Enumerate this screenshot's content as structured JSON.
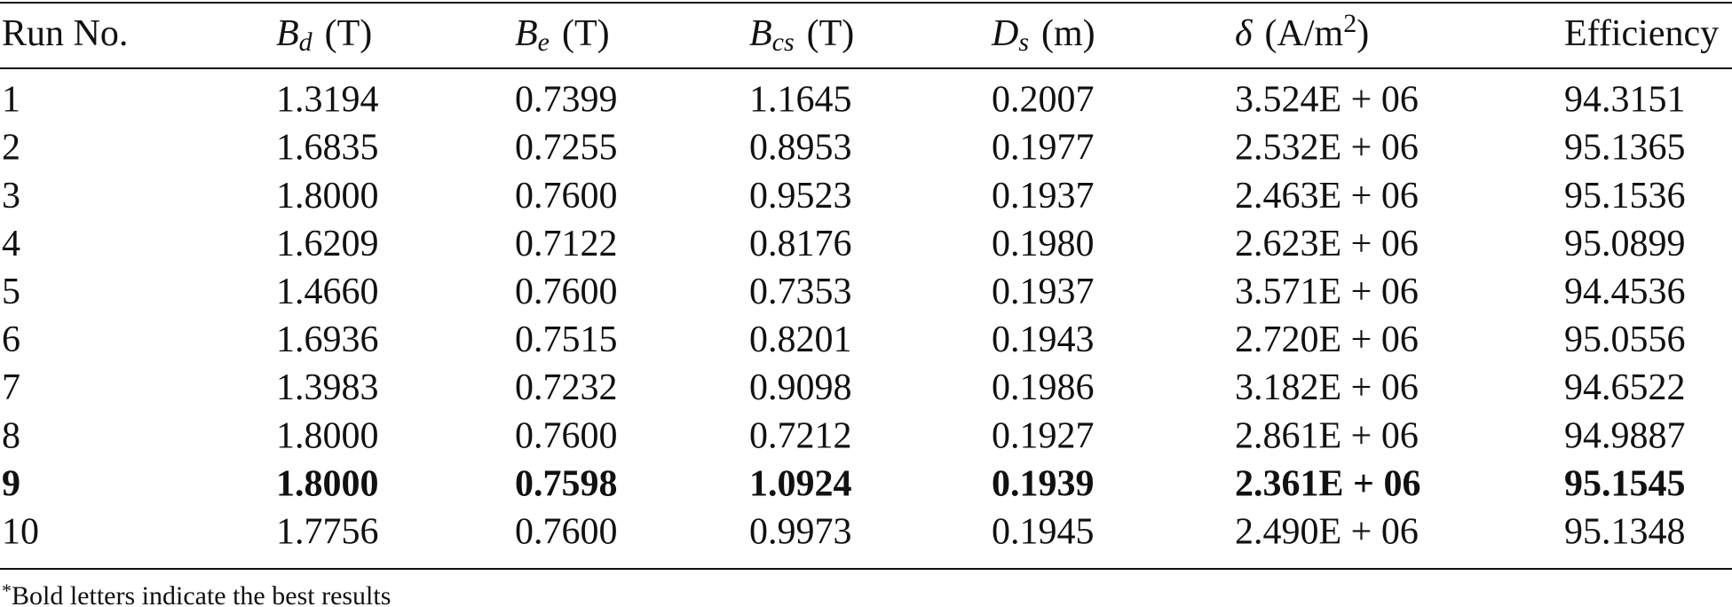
{
  "table": {
    "header": [
      {
        "text": "Run No."
      },
      {
        "symbol": "B",
        "subscript": "d",
        "unit": "(T)"
      },
      {
        "symbol": "B",
        "subscript": "e",
        "unit": "(T)"
      },
      {
        "symbol": "B",
        "subscript": "cs",
        "unit": "(T)"
      },
      {
        "symbol": "D",
        "subscript": "s",
        "unit": "(m)"
      },
      {
        "symbol": "δ",
        "unit": "(A/m",
        "superscript": "2",
        "close": ")"
      },
      {
        "text": "Efficiency"
      }
    ],
    "rows": [
      [
        "1",
        "1.3194",
        "0.7399",
        "1.1645",
        "0.2007",
        "3.524E + 06",
        "94.3151"
      ],
      [
        "2",
        "1.6835",
        "0.7255",
        "0.8953",
        "0.1977",
        "2.532E + 06",
        "95.1365"
      ],
      [
        "3",
        "1.8000",
        "0.7600",
        "0.9523",
        "0.1937",
        "2.463E + 06",
        "95.1536"
      ],
      [
        "4",
        "1.6209",
        "0.7122",
        "0.8176",
        "0.1980",
        "2.623E + 06",
        "95.0899"
      ],
      [
        "5",
        "1.4660",
        "0.7600",
        "0.7353",
        "0.1937",
        "3.571E + 06",
        "94.4536"
      ],
      [
        "6",
        "1.6936",
        "0.7515",
        "0.8201",
        "0.1943",
        "2.720E + 06",
        "95.0556"
      ],
      [
        "7",
        "1.3983",
        "0.7232",
        "0.9098",
        "0.1986",
        "3.182E + 06",
        "94.6522"
      ],
      [
        "8",
        "1.8000",
        "0.7600",
        "0.7212",
        "0.1927",
        "2.861E + 06",
        "94.9887"
      ],
      [
        "9",
        "1.8000",
        "0.7598",
        "1.0924",
        "0.1939",
        "2.361E + 06",
        "95.1545"
      ],
      [
        "10",
        "1.7756",
        "0.7600",
        "0.9973",
        "0.1945",
        "2.490E + 06",
        "95.1348"
      ]
    ],
    "bold_row": 8,
    "footnote": {
      "marker": "*",
      "text": "Bold letters indicate the best results"
    }
  }
}
